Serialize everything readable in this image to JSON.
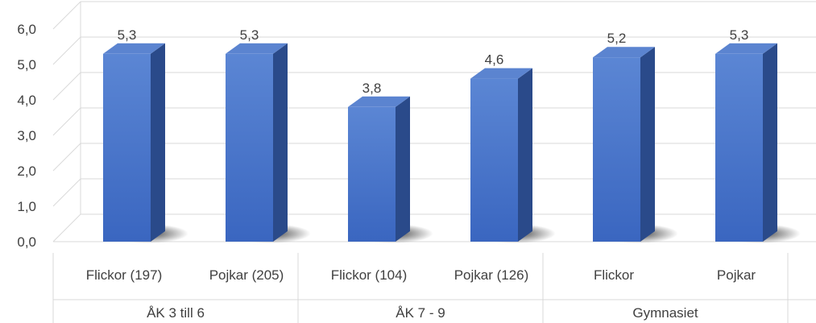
{
  "chart_data": {
    "type": "bar",
    "title": "",
    "xlabel": "",
    "ylabel": "",
    "ylim": [
      0,
      6
    ],
    "y_ticks": [
      "0,0",
      "1,0",
      "2,0",
      "3,0",
      "4,0",
      "5,0",
      "6,0"
    ],
    "grid": true,
    "legend": "none",
    "style": "3d-column",
    "categories": [
      "Flickor (197)",
      "Pojkar (205)",
      "Flickor (104)",
      "Pojkar (126)",
      "Flickor",
      "Pojkar"
    ],
    "groups": [
      {
        "label": "ÅK 3 till 6",
        "members": [
          0,
          1
        ]
      },
      {
        "label": "ÅK 7 - 9",
        "members": [
          2,
          3
        ]
      },
      {
        "label": "Gymnasiet",
        "members": [
          4,
          5
        ]
      }
    ],
    "values": [
      5.3,
      5.3,
      3.8,
      4.6,
      5.2,
      5.3
    ],
    "value_labels": [
      "5,3",
      "5,3",
      "3,8",
      "4,6",
      "5,2",
      "5,3"
    ],
    "colors": {
      "bar_front": "#4472c4",
      "bar_side": "#2a4a8a",
      "bar_top": "#5b84d0",
      "grid": "#d9d9d9",
      "text": "#404040"
    }
  }
}
